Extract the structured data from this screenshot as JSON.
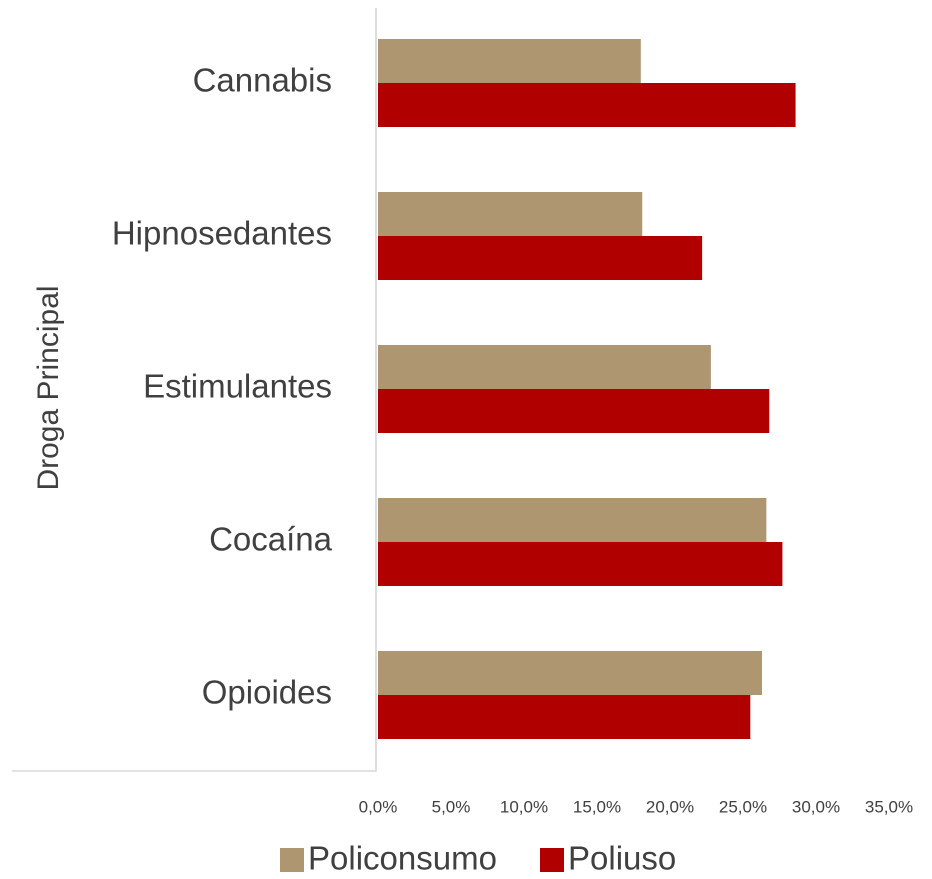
{
  "chart_data": {
    "type": "bar",
    "orientation": "horizontal",
    "ylabel": "Droga Principal",
    "xlabel": "",
    "categories": [
      "Cannabis",
      "Hipnosedantes",
      "Estimulantes",
      "Cocaína",
      "Opioides"
    ],
    "series": [
      {
        "name": "Policonsumo",
        "color": "#AE9671",
        "values": [
          18.0,
          18.1,
          22.8,
          26.6,
          26.3
        ]
      },
      {
        "name": "Poliuso",
        "color": "#B10000",
        "values": [
          28.6,
          22.2,
          26.8,
          27.7,
          25.5
        ]
      }
    ],
    "xlim": [
      0,
      35
    ],
    "x_ticks": [
      "0,0%",
      "5,0%",
      "10,0%",
      "15,0%",
      "20,0%",
      "25,0%",
      "30,0%",
      "35,0%"
    ],
    "grid": false,
    "legend_position": "bottom"
  }
}
